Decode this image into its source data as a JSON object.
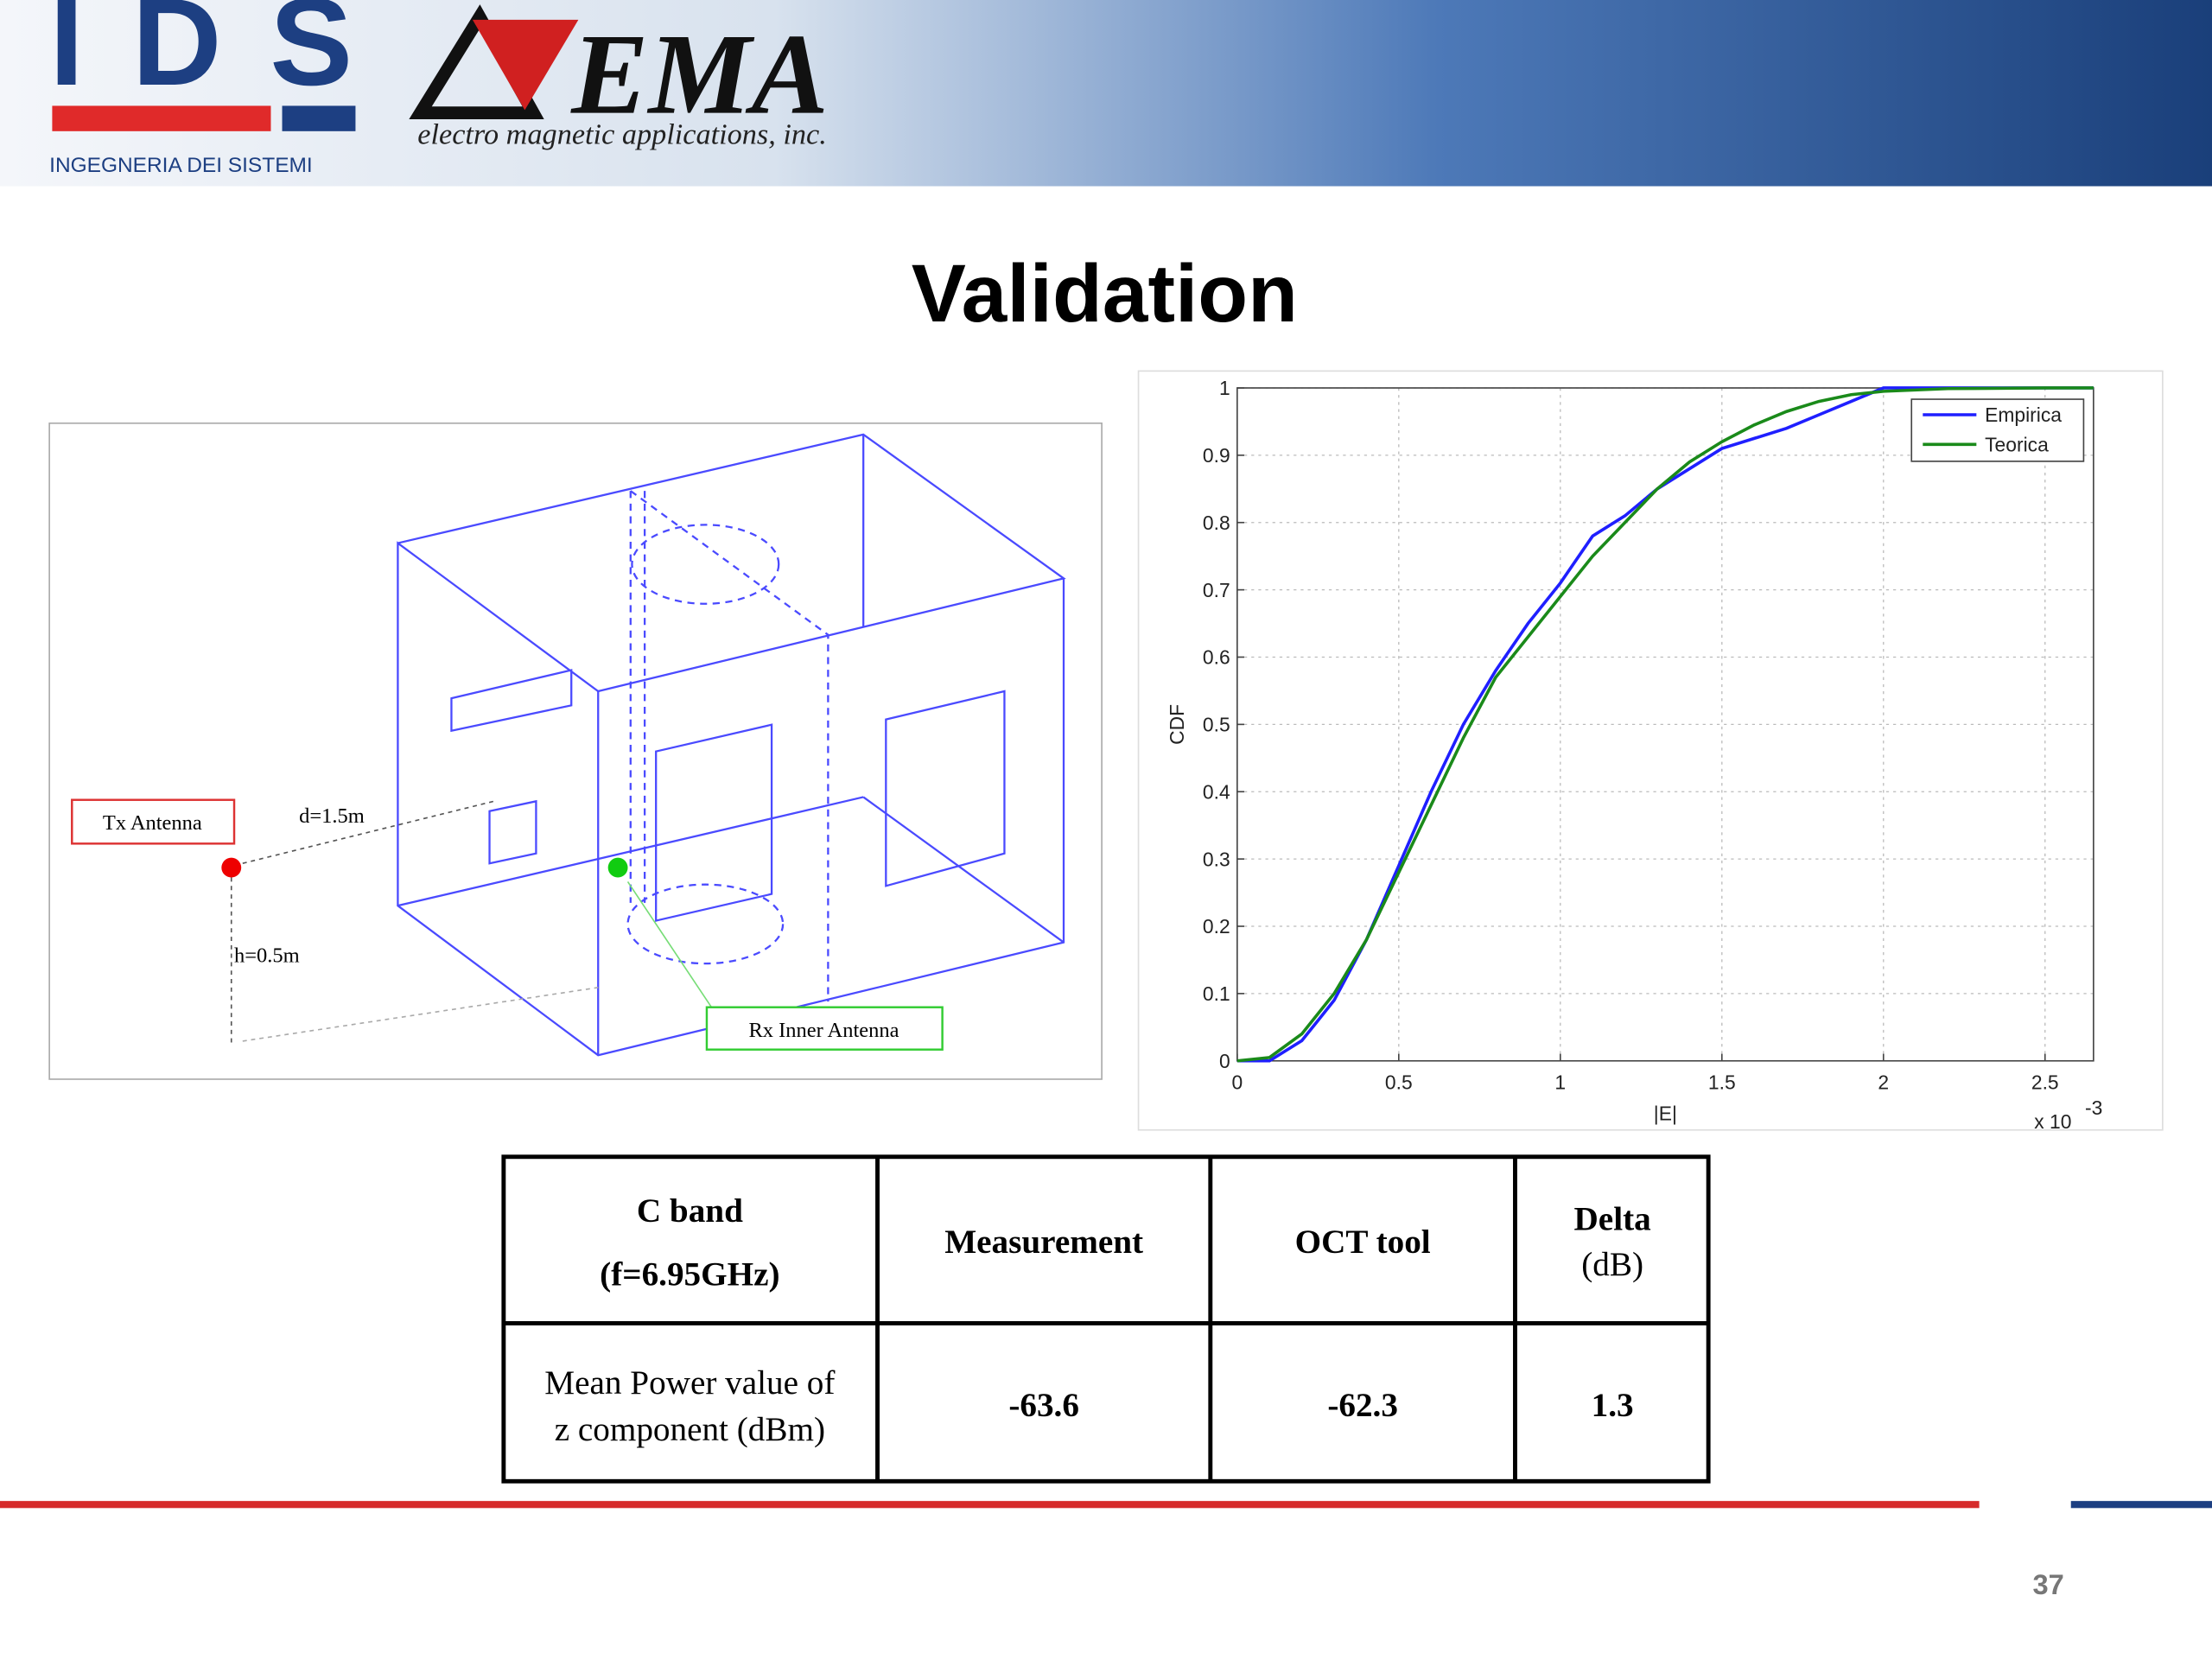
{
  "header": {
    "logo_left": "IDS",
    "logo_left_sub": "INGEGNERIA DEI SISTEMI",
    "logo_right": "EMA",
    "logo_right_sub": "electro magnetic applications, inc."
  },
  "title": "Validation",
  "diagram": {
    "tx": "Tx Antenna",
    "distance": "d=1.5m",
    "height": "h=0.5m",
    "rx": "Rx Inner Antenna"
  },
  "chart_data": {
    "type": "line",
    "x_label": "|E|",
    "y_label": "CDF",
    "x_scale_label": "x 10",
    "x_scale_exponent": "-3",
    "x": [
      0,
      0.1,
      0.2,
      0.3,
      0.4,
      0.5,
      0.6,
      0.7,
      0.8,
      0.9,
      1.0,
      1.1,
      1.2,
      1.3,
      1.4,
      1.5,
      1.6,
      1.7,
      1.8,
      1.9,
      2.0,
      2.2,
      2.5,
      2.65
    ],
    "series": [
      {
        "name": "Empirica",
        "color": "#1f1fff",
        "values": [
          0,
          0.0,
          0.03,
          0.09,
          0.18,
          0.29,
          0.4,
          0.5,
          0.58,
          0.65,
          0.71,
          0.78,
          0.81,
          0.85,
          0.88,
          0.91,
          0.925,
          0.94,
          0.96,
          0.98,
          1,
          1,
          1,
          1
        ]
      },
      {
        "name": "Teorica",
        "color": "#1a8a1a",
        "values": [
          0,
          0.005,
          0.04,
          0.1,
          0.18,
          0.28,
          0.38,
          0.48,
          0.57,
          0.63,
          0.69,
          0.75,
          0.8,
          0.85,
          0.89,
          0.92,
          0.945,
          0.965,
          0.98,
          0.99,
          0.995,
          0.999,
          1,
          1
        ]
      }
    ],
    "xlim": [
      0,
      2.65
    ],
    "xticks": [
      0,
      0.5,
      1,
      1.5,
      2,
      2.5
    ],
    "ylim": [
      0,
      1
    ],
    "yticks": [
      0,
      0.1,
      0.2,
      0.3,
      0.4,
      0.5,
      0.6,
      0.7,
      0.8,
      0.9,
      1
    ],
    "grid": true,
    "legend": "upper right"
  },
  "table": {
    "header": [
      [
        "C band",
        "(f=6.95GHz)"
      ],
      "Measurement",
      "OCT tool",
      [
        "Delta",
        "(dB)"
      ]
    ],
    "rows": [
      [
        [
          "Mean Power value of",
          "z component (dBm)"
        ],
        "-63.6",
        "-62.3",
        "1.3"
      ]
    ]
  },
  "page_number": 37
}
